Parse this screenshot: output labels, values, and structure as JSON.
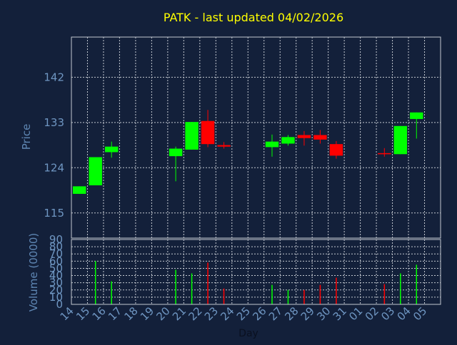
{
  "title": "PATK - last updated 04/02/2026",
  "colors": {
    "background": "#13203a",
    "frame": "#c3c8d0",
    "grid": "#c3c8d0",
    "up": "#00ff00",
    "down": "#ff0000",
    "title": "#ffff00",
    "axis_text": "#5f87b4",
    "tick_text": "#6f96c2",
    "xlabel_text": "#0a1020"
  },
  "chart_data": [
    {
      "type": "candlestick",
      "ylabel": "Price",
      "ylim": [
        110,
        150
      ],
      "y_ticks": [
        115,
        124,
        133,
        142
      ],
      "grid": true,
      "x_days": [
        "14",
        "15",
        "16",
        "17",
        "18",
        "19",
        "20",
        "21",
        "22",
        "23",
        "24",
        "25",
        "26",
        "27",
        "28",
        "29",
        "30",
        "31",
        "01",
        "02",
        "03",
        "04",
        "05"
      ],
      "candles": [
        {
          "day": "14",
          "open": 118.8,
          "close": 120.3,
          "high": 120.3,
          "low": 118.8
        },
        {
          "day": "15",
          "open": 120.5,
          "close": 126.1,
          "high": 126.1,
          "low": 120.5
        },
        {
          "day": "16",
          "open": 127.1,
          "close": 128.2,
          "high": 129.2,
          "low": 126.0
        },
        {
          "day": "20",
          "open": 126.3,
          "close": 127.8,
          "high": 128.2,
          "low": 121.3
        },
        {
          "day": "21",
          "open": 127.6,
          "close": 133.1,
          "high": 133.1,
          "low": 127.6
        },
        {
          "day": "22",
          "open": 133.3,
          "close": 128.7,
          "high": 135.5,
          "low": 128.1
        },
        {
          "day": "23",
          "open": 128.5,
          "close": 128.2,
          "high": 129.1,
          "low": 127.8
        },
        {
          "day": "26",
          "open": 128.1,
          "close": 129.2,
          "high": 130.6,
          "low": 126.2
        },
        {
          "day": "27",
          "open": 128.8,
          "close": 130.1,
          "high": 130.5,
          "low": 128.4
        },
        {
          "day": "28",
          "open": 130.5,
          "close": 129.9,
          "high": 131.3,
          "low": 128.4
        },
        {
          "day": "29",
          "open": 130.5,
          "close": 129.6,
          "high": 131.5,
          "low": 128.8
        },
        {
          "day": "30",
          "open": 128.7,
          "close": 126.4,
          "high": 129.3,
          "low": 125.8
        },
        {
          "day": "02",
          "open": 126.9,
          "close": 126.8,
          "high": 127.9,
          "low": 126.2
        },
        {
          "day": "03",
          "open": 126.7,
          "close": 132.3,
          "high": 132.3,
          "low": 126.7
        },
        {
          "day": "04",
          "open": 133.7,
          "close": 135.0,
          "high": 135.0,
          "low": 129.8
        }
      ]
    },
    {
      "type": "bar",
      "ylabel": "Volume (0000)",
      "xlabel": "Day",
      "ylim": [
        0,
        90
      ],
      "y_ticks": [
        0,
        10,
        20,
        30,
        40,
        50,
        60,
        70,
        80,
        90
      ],
      "grid": true,
      "bars": [
        {
          "day": "15",
          "value": 60,
          "direction": "up"
        },
        {
          "day": "16",
          "value": 32,
          "direction": "up"
        },
        {
          "day": "20",
          "value": 48,
          "direction": "up"
        },
        {
          "day": "21",
          "value": 43,
          "direction": "up"
        },
        {
          "day": "22",
          "value": 58,
          "direction": "down"
        },
        {
          "day": "23",
          "value": 22,
          "direction": "down"
        },
        {
          "day": "26",
          "value": 27,
          "direction": "up"
        },
        {
          "day": "27",
          "value": 20,
          "direction": "up"
        },
        {
          "day": "28",
          "value": 20,
          "direction": "down"
        },
        {
          "day": "29",
          "value": 27,
          "direction": "down"
        },
        {
          "day": "30",
          "value": 37,
          "direction": "down"
        },
        {
          "day": "02",
          "value": 28,
          "direction": "down"
        },
        {
          "day": "03",
          "value": 43,
          "direction": "up"
        },
        {
          "day": "04",
          "value": 55,
          "direction": "up"
        }
      ]
    }
  ]
}
